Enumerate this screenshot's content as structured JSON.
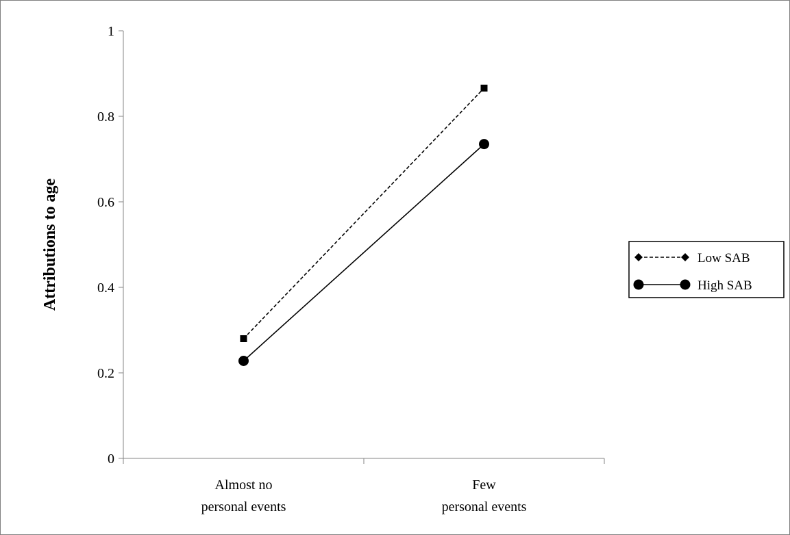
{
  "chart_data": {
    "type": "line",
    "title": "",
    "xlabel": "",
    "ylabel": "Attributions to age",
    "categories": [
      [
        "Almost no",
        "personal events"
      ],
      [
        "Few",
        "personal events"
      ]
    ],
    "series": [
      {
        "name": "Low SAB",
        "values": [
          0.28,
          0.866
        ],
        "line_style": "dashed",
        "marker": "square",
        "legend_marker": "diamond",
        "color": "#000000"
      },
      {
        "name": "High SAB",
        "values": [
          0.228,
          0.735
        ],
        "line_style": "solid",
        "marker": "circle",
        "legend_marker": "circle",
        "color": "#000000"
      }
    ],
    "yticks": [
      "0",
      "0.2",
      "0.4",
      "0.6",
      "0.8",
      "1"
    ],
    "ylim": [
      0,
      1
    ],
    "grid": false,
    "legend_position": "right"
  }
}
